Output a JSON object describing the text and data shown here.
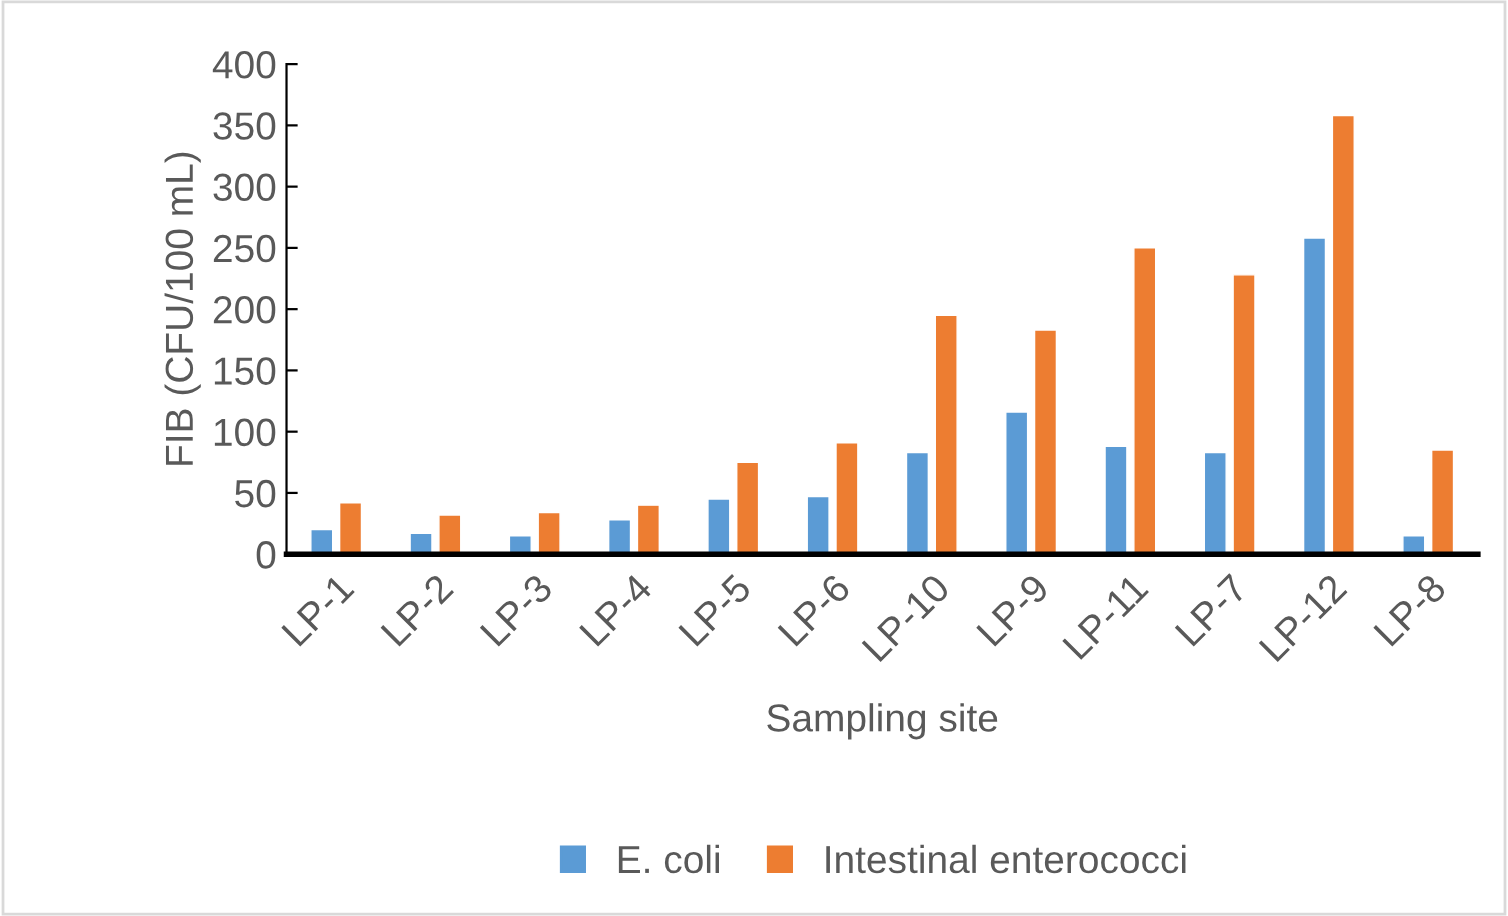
{
  "chart_data": {
    "type": "bar",
    "xlabel": "Sampling site",
    "ylabel": "FIB (CFU/100 mL)",
    "categories": [
      "LP-1",
      "LP-2",
      "LP-3",
      "LP-4",
      "LP-5",
      "LP-6",
      "LP-10",
      "LP-9",
      "LP-11",
      "LP-7",
      "LP-12",
      "LP-8"
    ],
    "series": [
      {
        "name": "E. coli",
        "color": "#5b9bd5",
        "values": [
          20,
          17,
          15,
          28,
          45,
          47,
          83,
          116,
          88,
          83,
          258,
          15
        ]
      },
      {
        "name": "Intestinal enterococci",
        "color": "#ed7d31",
        "values": [
          42,
          32,
          34,
          40,
          75,
          91,
          195,
          183,
          250,
          228,
          358,
          85
        ]
      }
    ],
    "ylim": [
      0,
      400
    ],
    "yticks": [
      0,
      50,
      100,
      150,
      200,
      250,
      300,
      350,
      400
    ],
    "grid": false,
    "legend": "bottom"
  }
}
